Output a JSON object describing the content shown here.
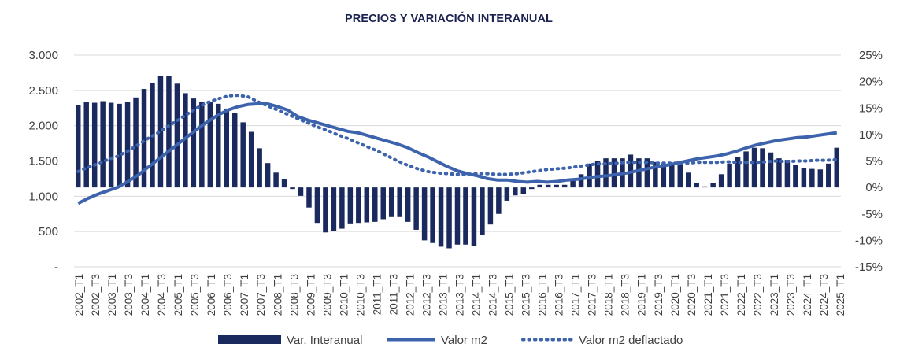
{
  "colors": {
    "bars": "#1b2a5e",
    "line": "#3d63ac",
    "dotted": "#3d63ac",
    "grid": "#d9d9d9",
    "title": "#1b2150"
  },
  "chart_data": {
    "type": "bar",
    "title": "PRECIOS Y VARIACIÓN INTERANUAL",
    "grid": true,
    "legend_position": "bottom",
    "y_left": {
      "range": [
        0,
        3000
      ],
      "ticks": [
        0,
        500,
        1000,
        1500,
        2000,
        2500,
        3000
      ],
      "tick_labels": [
        "-",
        "500",
        "1.000",
        "1.500",
        "2.000",
        "2.500",
        "3.000"
      ]
    },
    "y_right": {
      "range": [
        -15,
        25
      ],
      "unit": "%",
      "ticks": [
        -15,
        -10,
        -5,
        0,
        5,
        10,
        15,
        20,
        25
      ],
      "tick_labels": [
        "-15%",
        "-10%",
        "-5%",
        "0%",
        "5%",
        "10%",
        "15%",
        "20%",
        "25%"
      ]
    },
    "x_tick_labels": [
      "2002_T1",
      "2002_T3",
      "2003_T1",
      "2003_T3",
      "2004_T1",
      "2004_T3",
      "2005_T1",
      "2005_T3",
      "2006_T1",
      "2006_T3",
      "2007_T1",
      "2007_T3",
      "2008_T1",
      "2008_T3",
      "2009_T1",
      "2009_T3",
      "2010_T1",
      "2010_T3",
      "2011_T1",
      "2011_T3",
      "2012_T1",
      "2012_T3",
      "2013_T1",
      "2013_T3",
      "2014_T1",
      "2014_T3",
      "2015_T1",
      "2015_T3",
      "2016_T1",
      "2016_T3",
      "2017_T1",
      "2017_T3",
      "2018_T1",
      "2018_T3",
      "2019_T1",
      "2019_T3",
      "2020_T1",
      "2020_T3",
      "2021_T1",
      "2021_T3",
      "2022_T1",
      "2022_T3",
      "2023_T1",
      "2023_T3",
      "2024_T1",
      "2024_T3",
      "2025_T1"
    ],
    "series": [
      {
        "name": "Var. Interanual",
        "kind": "bar",
        "axis": "right",
        "values": [
          15.5,
          16.2,
          16.0,
          16.3,
          16.0,
          15.8,
          16.2,
          17.0,
          18.6,
          19.8,
          21.0,
          21.0,
          19.6,
          17.8,
          16.8,
          16.2,
          16.2,
          15.8,
          14.9,
          14.0,
          12.3,
          10.5,
          7.4,
          4.6,
          2.8,
          1.5,
          -0.3,
          -1.6,
          -3.8,
          -6.7,
          -8.5,
          -8.3,
          -7.8,
          -6.8,
          -6.7,
          -6.6,
          -6.5,
          -6.0,
          -5.6,
          -5.6,
          -6.5,
          -8.0,
          -10.0,
          -10.5,
          -11.2,
          -11.5,
          -10.8,
          -10.8,
          -11.0,
          -9.0,
          -7.0,
          -5.0,
          -2.5,
          -1.5,
          -1.3,
          -0.3,
          0.5,
          0.5,
          0.5,
          0.5,
          1.5,
          2.5,
          4.5,
          5.0,
          5.5,
          5.5,
          5.5,
          6.2,
          5.5,
          5.5,
          4.8,
          4.5,
          4.5,
          4.2,
          2.8,
          0.8,
          0.2,
          0.8,
          2.5,
          4.5,
          5.8,
          6.8,
          7.5,
          7.4,
          6.6,
          5.5,
          5.2,
          4.2,
          3.6,
          3.5,
          3.4,
          4.5,
          7.5
        ]
      },
      {
        "name": "Valor m2",
        "kind": "line",
        "axis": "left",
        "values": [
          900,
          970,
          1030,
          1080,
          1130,
          1210,
          1300,
          1410,
          1520,
          1630,
          1740,
          1850,
          1960,
          2060,
          2150,
          2220,
          2270,
          2300,
          2310,
          2310,
          2270,
          2220,
          2130,
          2080,
          2040,
          2000,
          1960,
          1920,
          1900,
          1860,
          1820,
          1780,
          1740,
          1690,
          1620,
          1560,
          1490,
          1420,
          1360,
          1320,
          1290,
          1250,
          1230,
          1230,
          1210,
          1200,
          1210,
          1200,
          1210,
          1230,
          1240,
          1260,
          1280,
          1290,
          1310,
          1330,
          1360,
          1390,
          1420,
          1440,
          1470,
          1500,
          1530,
          1550,
          1570,
          1600,
          1640,
          1690,
          1730,
          1760,
          1790,
          1810,
          1830,
          1840,
          1860,
          1880,
          1900
        ]
      },
      {
        "name": "Valor m2 deflactado",
        "kind": "dotted",
        "axis": "left",
        "values": [
          1350,
          1410,
          1460,
          1520,
          1570,
          1640,
          1730,
          1820,
          1900,
          1990,
          2080,
          2170,
          2260,
          2330,
          2380,
          2420,
          2430,
          2410,
          2340,
          2280,
          2220,
          2160,
          2100,
          2040,
          1980,
          1930,
          1870,
          1820,
          1760,
          1700,
          1640,
          1570,
          1500,
          1440,
          1390,
          1350,
          1330,
          1320,
          1310,
          1310,
          1320,
          1320,
          1310,
          1310,
          1320,
          1340,
          1360,
          1380,
          1390,
          1400,
          1420,
          1440,
          1460,
          1460,
          1470,
          1480,
          1480,
          1480,
          1470,
          1470,
          1470,
          1470,
          1480,
          1480,
          1480,
          1490,
          1480,
          1480,
          1480,
          1490,
          1500,
          1490,
          1500,
          1500,
          1510,
          1510,
          1520
        ]
      }
    ]
  }
}
